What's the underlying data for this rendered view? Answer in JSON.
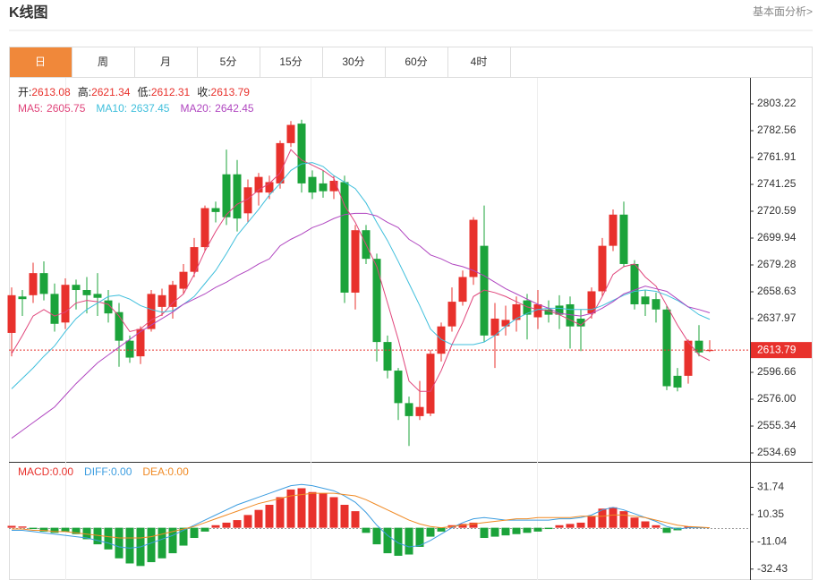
{
  "header": {
    "title": "K线图",
    "link": "基本面分析>"
  },
  "tabs": [
    "日",
    "周",
    "月",
    "5分",
    "15分",
    "30分",
    "60分",
    "4时"
  ],
  "active_tab": 0,
  "chart_data": [
    {
      "type": "candlestick",
      "ohlc_labels": [
        "开:",
        "高:",
        "低:",
        "收:"
      ],
      "open": [
        2627,
        2655,
        2656,
        2673,
        2657,
        2635,
        2664,
        2660,
        2657,
        2652,
        2643,
        2621,
        2609,
        2630,
        2647,
        2647,
        2661,
        2674,
        2693,
        2723,
        2749,
        2749,
        2719,
        2735,
        2735,
        2742,
        2773,
        2788,
        2747,
        2742,
        2736,
        2743,
        2658,
        2706,
        2684,
        2620,
        2598,
        2573,
        2563,
        2565,
        2611,
        2632,
        2651,
        2670,
        2694,
        2625,
        2632,
        2637,
        2652,
        2639,
        2645,
        2648,
        2649,
        2638,
        2642,
        2659,
        2694,
        2718,
        2680,
        2655,
        2653,
        2645,
        2594,
        2594,
        2621,
        2613.08
      ],
      "high": [
        2662,
        2660,
        2681,
        2682,
        2665,
        2669,
        2668,
        2670,
        2673,
        2660,
        2650,
        2625,
        2632,
        2660,
        2661,
        2667,
        2680,
        2700,
        2725,
        2728,
        2768,
        2760,
        2745,
        2750,
        2748,
        2775,
        2790,
        2791,
        2752,
        2752,
        2748,
        2748,
        2710,
        2710,
        2688,
        2625,
        2600,
        2578,
        2590,
        2614,
        2635,
        2662,
        2675,
        2716,
        2725,
        2650,
        2648,
        2655,
        2657,
        2660,
        2652,
        2656,
        2655,
        2645,
        2662,
        2700,
        2722,
        2728,
        2683,
        2660,
        2658,
        2648,
        2600,
        2622,
        2633,
        2621.34
      ],
      "low": [
        2609,
        2640,
        2650,
        2652,
        2628,
        2630,
        2645,
        2642,
        2640,
        2635,
        2601,
        2604,
        2603,
        2628,
        2640,
        2638,
        2657,
        2670,
        2690,
        2712,
        2710,
        2705,
        2712,
        2725,
        2730,
        2738,
        2770,
        2735,
        2730,
        2731,
        2730,
        2650,
        2645,
        2680,
        2605,
        2592,
        2560,
        2540,
        2560,
        2563,
        2605,
        2628,
        2648,
        2664,
        2620,
        2600,
        2625,
        2628,
        2622,
        2630,
        2635,
        2630,
        2615,
        2613,
        2638,
        2655,
        2690,
        2678,
        2645,
        2640,
        2635,
        2583,
        2582,
        2588,
        2609,
        2612.31
      ],
      "close": [
        2656,
        2653,
        2673,
        2657,
        2634,
        2664,
        2660,
        2656,
        2654,
        2642,
        2621,
        2608,
        2630,
        2657,
        2656,
        2664,
        2674,
        2693,
        2723,
        2720,
        2716,
        2715,
        2739,
        2747,
        2743,
        2773,
        2787,
        2742,
        2735,
        2736,
        2744,
        2658,
        2706,
        2684,
        2620,
        2598,
        2573,
        2563,
        2570,
        2611,
        2632,
        2651,
        2670,
        2714,
        2625,
        2638,
        2637,
        2649,
        2641,
        2649,
        2641,
        2641,
        2632,
        2632,
        2659,
        2694,
        2718,
        2680,
        2649,
        2649,
        2645,
        2586,
        2585,
        2621,
        2612,
        2613.79
      ],
      "up_color": "#e8312c",
      "down_color": "#1ba33a",
      "series": [
        {
          "name": "MA5:",
          "color": "#e0457b",
          "values": [
            2611,
            2625,
            2640,
            2645,
            2640,
            2643,
            2650,
            2652,
            2651,
            2649,
            2640,
            2628,
            2630,
            2637,
            2641,
            2650,
            2657,
            2672,
            2690,
            2705,
            2718,
            2726,
            2730,
            2737,
            2742,
            2750,
            2768,
            2760,
            2756,
            2752,
            2746,
            2725,
            2712,
            2695,
            2678,
            2650,
            2622,
            2590,
            2582,
            2582,
            2598,
            2618,
            2635,
            2655,
            2660,
            2658,
            2655,
            2651,
            2647,
            2645,
            2644,
            2641,
            2637,
            2633,
            2640,
            2655,
            2672,
            2678,
            2680,
            2670,
            2663,
            2648,
            2633,
            2620,
            2610,
            2605.75
          ]
        },
        {
          "name": "MA10:",
          "color": "#3fbfdc",
          "values": [
            2584,
            2592,
            2600,
            2609,
            2617,
            2628,
            2638,
            2645,
            2650,
            2655,
            2656,
            2653,
            2648,
            2645,
            2643,
            2644,
            2649,
            2655,
            2665,
            2675,
            2688,
            2702,
            2712,
            2722,
            2733,
            2742,
            2752,
            2757,
            2758,
            2755,
            2748,
            2743,
            2738,
            2727,
            2712,
            2698,
            2682,
            2665,
            2648,
            2630,
            2622,
            2618,
            2618,
            2618,
            2620,
            2625,
            2632,
            2638,
            2642,
            2645,
            2646,
            2646,
            2645,
            2645,
            2645,
            2648,
            2652,
            2656,
            2659,
            2660,
            2659,
            2656,
            2652,
            2647,
            2641,
            2637.45
          ]
        },
        {
          "name": "MA20:",
          "color": "#b046c0",
          "values": [
            2546,
            2552,
            2558,
            2564,
            2570,
            2579,
            2588,
            2596,
            2604,
            2610,
            2616,
            2622,
            2628,
            2633,
            2638,
            2643,
            2649,
            2653,
            2657,
            2662,
            2666,
            2671,
            2675,
            2680,
            2684,
            2694,
            2699,
            2703,
            2708,
            2711,
            2715,
            2718,
            2719,
            2719,
            2717,
            2712,
            2708,
            2699,
            2694,
            2687,
            2684,
            2680,
            2678,
            2675,
            2671,
            2666,
            2661,
            2657,
            2653,
            2649,
            2646,
            2642,
            2641,
            2640,
            2642,
            2646,
            2651,
            2657,
            2660,
            2663,
            2661,
            2659,
            2653,
            2647,
            2645,
            2642.45
          ]
        }
      ],
      "ylim": [
        2528.5,
        2822.5
      ],
      "yticks": [
        2803.22,
        2782.56,
        2761.91,
        2741.25,
        2720.59,
        2699.94,
        2679.28,
        2658.63,
        2637.97,
        2596.66,
        {
          "value": 2576,
          "label": "2576.00"
        },
        2555.34,
        2534.69
      ],
      "last_price_color": "#e8312c"
    },
    {
      "type": "macd",
      "series": [
        {
          "name": "MACD:",
          "kind": "bar",
          "color": "#e8312c",
          "down_color": "#1ba33a",
          "last_label": "0.00",
          "values": [
            1.5,
            1,
            -1,
            -3,
            -4,
            -3,
            -5,
            -9,
            -13,
            -17,
            -24,
            -28,
            -30,
            -27,
            -24,
            -20,
            -14,
            -8,
            -3,
            2,
            4,
            6,
            10,
            14,
            18,
            24,
            30,
            31,
            28,
            27,
            24,
            18,
            13,
            -4,
            -13,
            -20,
            -22,
            -21,
            -15,
            -7,
            -3,
            2,
            3,
            4,
            -8,
            -7,
            -6,
            -5,
            -4,
            -3,
            -1,
            2,
            3,
            4,
            9,
            15,
            16,
            13,
            8,
            5,
            2,
            -4,
            -2,
            1,
            0.5,
            0
          ]
        },
        {
          "name": "DIFF:",
          "kind": "line",
          "color": "#3c9de0",
          "last_label": "0.00",
          "values": [
            -2,
            -2,
            -3,
            -4,
            -5,
            -6,
            -7,
            -8,
            -10,
            -12,
            -15,
            -16,
            -15,
            -12,
            -9,
            -6,
            -2,
            2,
            6,
            10,
            14,
            18,
            21,
            24,
            27,
            30,
            33,
            34,
            33,
            31,
            29,
            25,
            20,
            12,
            2,
            -6,
            -12,
            -15,
            -14,
            -10,
            -5,
            0,
            4,
            7,
            8,
            7,
            6,
            6,
            6,
            6,
            6,
            7,
            7,
            8,
            10,
            14,
            16,
            14,
            11,
            8,
            5,
            1,
            -1,
            0,
            0,
            0
          ]
        },
        {
          "name": "DEA:",
          "kind": "line",
          "color": "#f08a24",
          "last_label": "0.00",
          "values": [
            -1,
            -1,
            -2,
            -2,
            -3,
            -3,
            -4,
            -5,
            -6,
            -7,
            -8,
            -8,
            -8,
            -7,
            -5,
            -3,
            -1,
            1,
            4,
            7,
            10,
            13,
            16,
            19,
            21,
            23,
            25,
            26,
            27,
            27,
            27,
            26,
            25,
            22,
            18,
            14,
            10,
            6,
            3,
            1,
            0,
            1,
            2,
            3,
            4,
            5,
            6,
            7,
            7,
            8,
            8,
            8,
            8,
            9,
            9,
            9,
            10,
            10,
            9,
            8,
            6,
            4,
            2,
            1,
            0.5,
            0
          ]
        }
      ],
      "ylim": [
        -41,
        50.3
      ],
      "yticks": [
        31.74,
        10.35,
        -11.04,
        -32.43
      ]
    }
  ]
}
